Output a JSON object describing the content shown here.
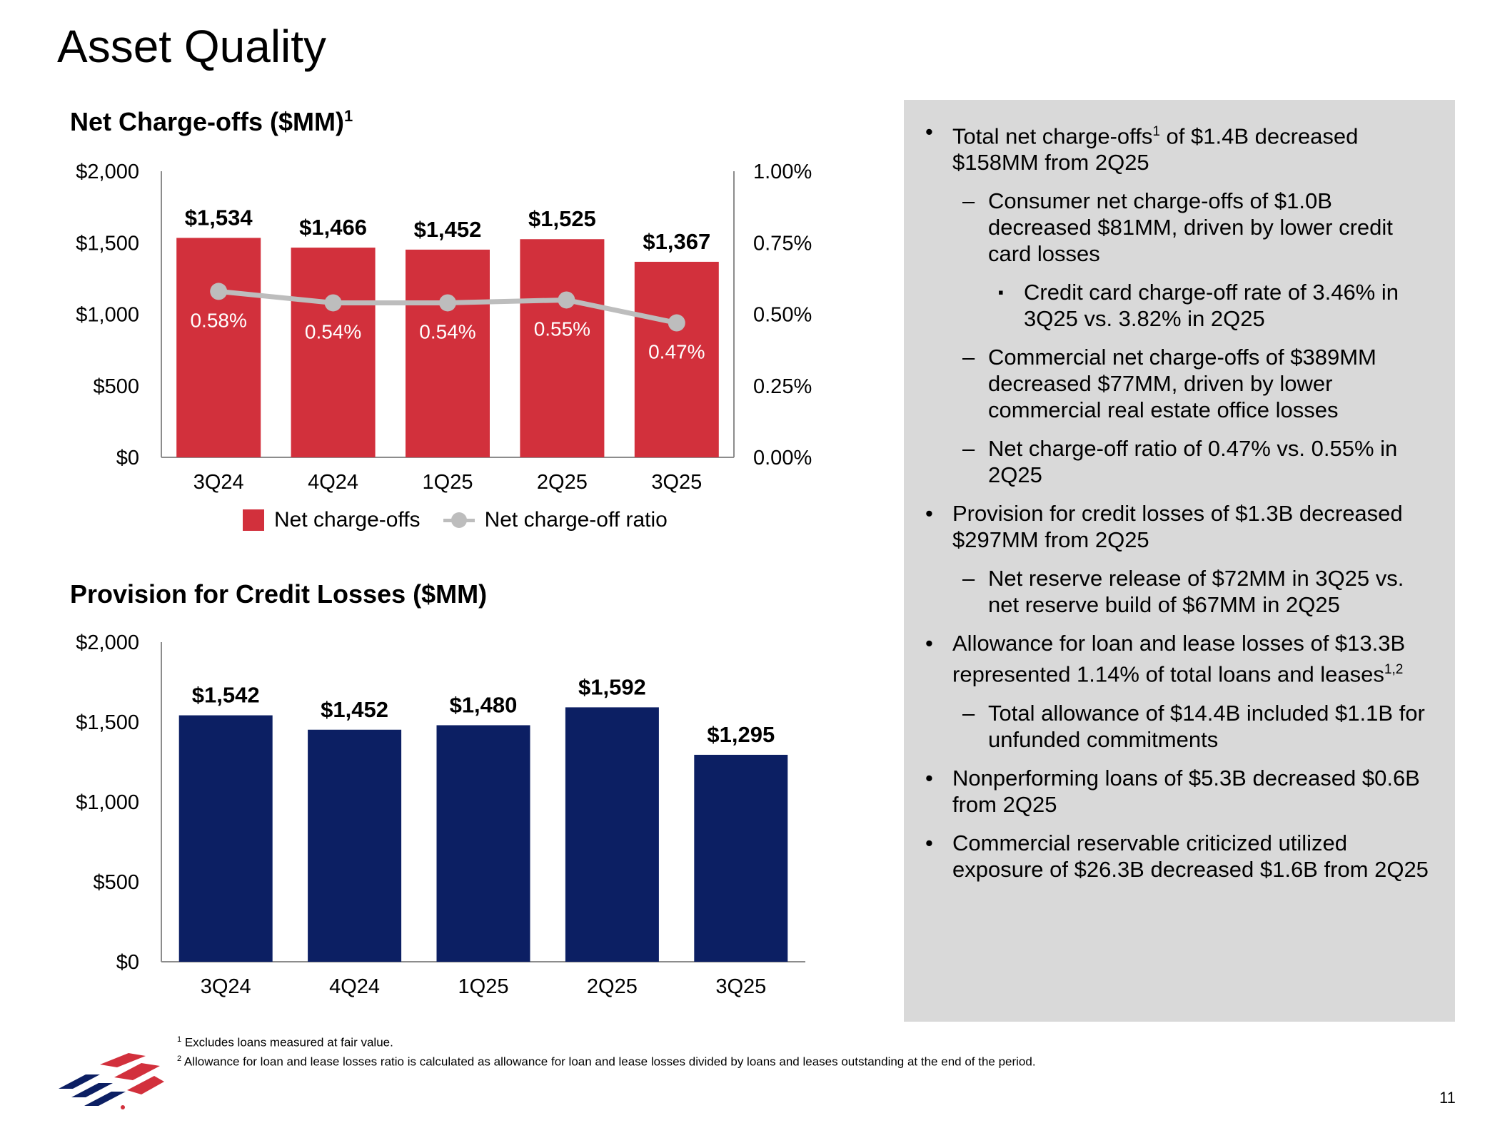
{
  "page": {
    "title": "Asset Quality",
    "page_number": "11"
  },
  "chart1_title": {
    "text": "Net Charge-offs ($MM)",
    "sup": "1"
  },
  "chart2_title": {
    "text": "Provision for Credit Losses ($MM)"
  },
  "legend": {
    "bars": "Net charge-offs",
    "line": "Net charge-off ratio"
  },
  "colors": {
    "charge_offs": "#d2303c",
    "provision": "#0c1f63",
    "ratio_line": "#bdbdbd",
    "panel": "#d9d9d9"
  },
  "chart_data": [
    {
      "type": "bar",
      "title": "Net Charge-offs ($MM)",
      "categories": [
        "3Q24",
        "4Q24",
        "1Q25",
        "2Q25",
        "3Q25"
      ],
      "series": [
        {
          "name": "Net charge-offs",
          "type": "bar",
          "values": [
            1534,
            1466,
            1452,
            1525,
            1367
          ],
          "labels": [
            "$1,534",
            "$1,466",
            "$1,452",
            "$1,525",
            "$1,367"
          ]
        },
        {
          "name": "Net charge-off ratio",
          "type": "line",
          "axis": "right",
          "values": [
            0.58,
            0.54,
            0.54,
            0.55,
            0.47
          ],
          "labels": [
            "0.58%",
            "0.54%",
            "0.54%",
            "0.55%",
            "0.47%"
          ]
        }
      ],
      "ylim": [
        0,
        2000
      ],
      "yticks": [
        "$0",
        "$500",
        "$1,000",
        "$1,500",
        "$2,000"
      ],
      "y2lim": [
        0,
        1.0
      ],
      "y2ticks": [
        "0.00%",
        "0.25%",
        "0.50%",
        "0.75%",
        "1.00%"
      ],
      "legend": "bottom"
    },
    {
      "type": "bar",
      "title": "Provision for Credit Losses ($MM)",
      "categories": [
        "3Q24",
        "4Q24",
        "1Q25",
        "2Q25",
        "3Q25"
      ],
      "values": [
        1542,
        1452,
        1480,
        1592,
        1295
      ],
      "labels": [
        "$1,542",
        "$1,452",
        "$1,480",
        "$1,592",
        "$1,295"
      ],
      "ylim": [
        0,
        2000
      ],
      "yticks": [
        "$0",
        "$500",
        "$1,000",
        "$1,500",
        "$2,000"
      ]
    }
  ],
  "bullets": [
    {
      "level": 1,
      "text": "Total net charge-offs",
      "sup": "1",
      "text2": " of $1.4B decreased $158MM from 2Q25"
    },
    {
      "level": 2,
      "text": "Consumer net charge-offs of $1.0B decreased $81MM, driven by lower credit card losses"
    },
    {
      "level": 3,
      "text": "Credit card charge-off rate of 3.46% in 3Q25 vs. 3.82% in 2Q25"
    },
    {
      "level": 2,
      "text": "Commercial net charge-offs of $389MM decreased $77MM, driven by lower commercial real estate office losses"
    },
    {
      "level": 2,
      "text": "Net charge-off ratio of 0.47% vs. 0.55% in 2Q25"
    },
    {
      "level": 1,
      "text": "Provision for credit losses of $1.3B decreased $297MM from 2Q25"
    },
    {
      "level": 2,
      "text": "Net reserve release of $72MM in 3Q25 vs. net reserve build of $67MM in 2Q25"
    },
    {
      "level": 1,
      "text": "Allowance for loan and lease losses of $13.3B represented 1.14% of total loans and leases",
      "sup": "1,2"
    },
    {
      "level": 2,
      "text": "Total allowance of $14.4B included $1.1B for unfunded commitments"
    },
    {
      "level": 1,
      "text": "Nonperforming loans of $5.3B decreased $0.6B from 2Q25"
    },
    {
      "level": 1,
      "text": "Commercial reservable criticized utilized exposure of $26.3B decreased $1.6B from 2Q25"
    }
  ],
  "footnotes": [
    {
      "sup": "1",
      "text": " Excludes loans measured at fair value."
    },
    {
      "sup": "2",
      "text": " Allowance for loan and lease losses ratio is calculated as allowance for loan and lease losses divided by loans and leases outstanding at the end of the period."
    }
  ]
}
